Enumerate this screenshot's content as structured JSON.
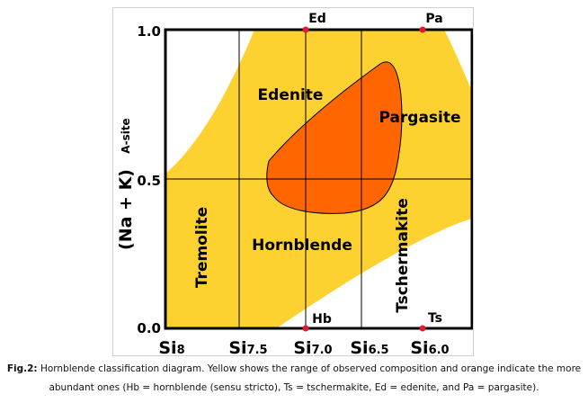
{
  "diagram": {
    "y_axis_label": "(Na + K)",
    "y_axis_sublabel": "A-site",
    "y_ticks": [
      "1.0",
      "0.5",
      "0.0"
    ],
    "x_ticks": [
      {
        "base": "Si",
        "sub": "8"
      },
      {
        "base": "Si",
        "sub": "7.5"
      },
      {
        "base": "Si",
        "sub": "7.0"
      },
      {
        "base": "Si",
        "sub": "6.5"
      },
      {
        "base": "Si",
        "sub": "6.0"
      }
    ],
    "fields": {
      "edenite": "Edenite",
      "pargasite": "Pargasite",
      "hornblende": "Hornblende",
      "tremolite": "Tremolite",
      "tschermakite": "Tschermakite"
    },
    "end_members": {
      "ed": "Ed",
      "pa": "Pa",
      "hb": "Hb",
      "ts": "Ts"
    },
    "colors": {
      "observed": "#fdd230",
      "abundant": "#ff6600",
      "point": "#e8192c",
      "grid": "#000000"
    }
  },
  "caption": {
    "label": "Fig.2:",
    "text": " Hornblende classification diagram. Yellow shows the range of observed composition and orange indicate the more abundant ones (Hb = hornblende (sensu stricto), Ts = tschermakite, Ed = edenite, and Pa = pargasite)."
  }
}
